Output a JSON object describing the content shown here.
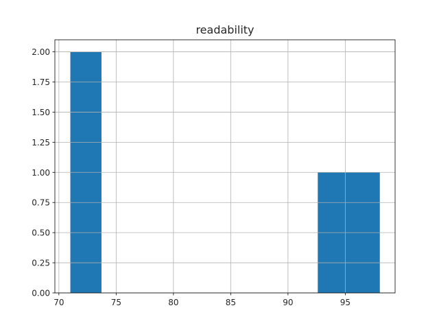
{
  "chart_data": {
    "type": "bar",
    "title": "readability",
    "xlabel": "",
    "ylabel": "",
    "bin_edges": [
      71.0,
      73.7,
      76.4,
      79.1,
      81.8,
      84.5,
      87.2,
      89.9,
      92.6,
      95.3,
      98.0
    ],
    "counts": [
      2,
      0,
      0,
      0,
      0,
      0,
      0,
      0,
      1,
      1
    ],
    "xlim": [
      69.65,
      99.35
    ],
    "ylim": [
      0,
      2.1
    ],
    "xticks": [
      70,
      75,
      80,
      85,
      90,
      95
    ],
    "xtick_labels": [
      "70",
      "75",
      "80",
      "85",
      "90",
      "95"
    ],
    "yticks": [
      0,
      0.25,
      0.5,
      0.75,
      1.0,
      1.25,
      1.5,
      1.75,
      2.0
    ],
    "ytick_labels": [
      "0.00",
      "0.25",
      "0.50",
      "0.75",
      "1.00",
      "1.25",
      "1.50",
      "1.75",
      "2.00"
    ],
    "grid": true,
    "bar_color": "#1f77b4",
    "grid_color": "#b0b0b0"
  }
}
